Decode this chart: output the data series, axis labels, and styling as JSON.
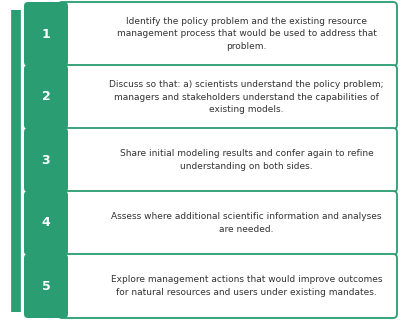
{
  "background_color": "#ffffff",
  "arrow_color": "#2a9d72",
  "box_bg_color": "#2a9d72",
  "box_text_color": "#ffffff",
  "card_bg_color": "#ffffff",
  "card_border_color": "#2a9d72",
  "card_text_color": "#333333",
  "steps": [
    {
      "number": "1",
      "text": "Identify the policy problem and the existing resource\nmanagement process that would be used to address that\nproblem."
    },
    {
      "number": "2",
      "text": "Discuss so that: a) scientists understand the policy problem;\nmanagers and stakeholders understand the capabilities of\nexisting models."
    },
    {
      "number": "3",
      "text": "Share initial modeling results and confer again to refine\nunderstanding on both sides."
    },
    {
      "number": "4",
      "text": "Assess where additional scientific information and analyses\nare needed."
    },
    {
      "number": "5",
      "text": "Explore management actions that would improve outcomes\nfor natural resources and users under existing mandates."
    }
  ]
}
